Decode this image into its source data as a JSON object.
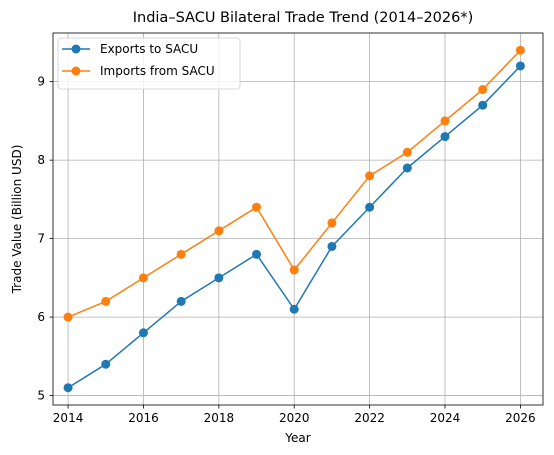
{
  "chart_data": {
    "type": "line",
    "title": "India–SACU Bilateral Trade Trend (2014–2026*)",
    "xlabel": "Year",
    "ylabel": "Trade Value (Billion USD)",
    "x": [
      2014,
      2015,
      2016,
      2017,
      2018,
      2019,
      2020,
      2021,
      2022,
      2023,
      2024,
      2025,
      2026
    ],
    "series": [
      {
        "name": "Exports to SACU",
        "color": "#1f77b4",
        "marker": "circle",
        "values": [
          5.1,
          5.4,
          5.8,
          6.2,
          6.5,
          6.8,
          6.1,
          6.9,
          7.4,
          7.9,
          8.3,
          8.7,
          9.2
        ]
      },
      {
        "name": "Imports from SACU",
        "color": "#ff7f0e",
        "marker": "circle",
        "values": [
          6.0,
          6.2,
          6.5,
          6.8,
          7.1,
          7.4,
          6.6,
          7.2,
          7.8,
          8.1,
          8.5,
          8.9,
          9.4
        ]
      }
    ],
    "xlim": [
      2013.6,
      2026.6
    ],
    "ylim": [
      4.88,
      9.62
    ],
    "xticks": [
      "2014",
      "2016",
      "2018",
      "2020",
      "2022",
      "2024",
      "2026"
    ],
    "yticks": [
      "5",
      "6",
      "7",
      "8",
      "9"
    ],
    "grid": true,
    "legend_position": "upper left"
  }
}
